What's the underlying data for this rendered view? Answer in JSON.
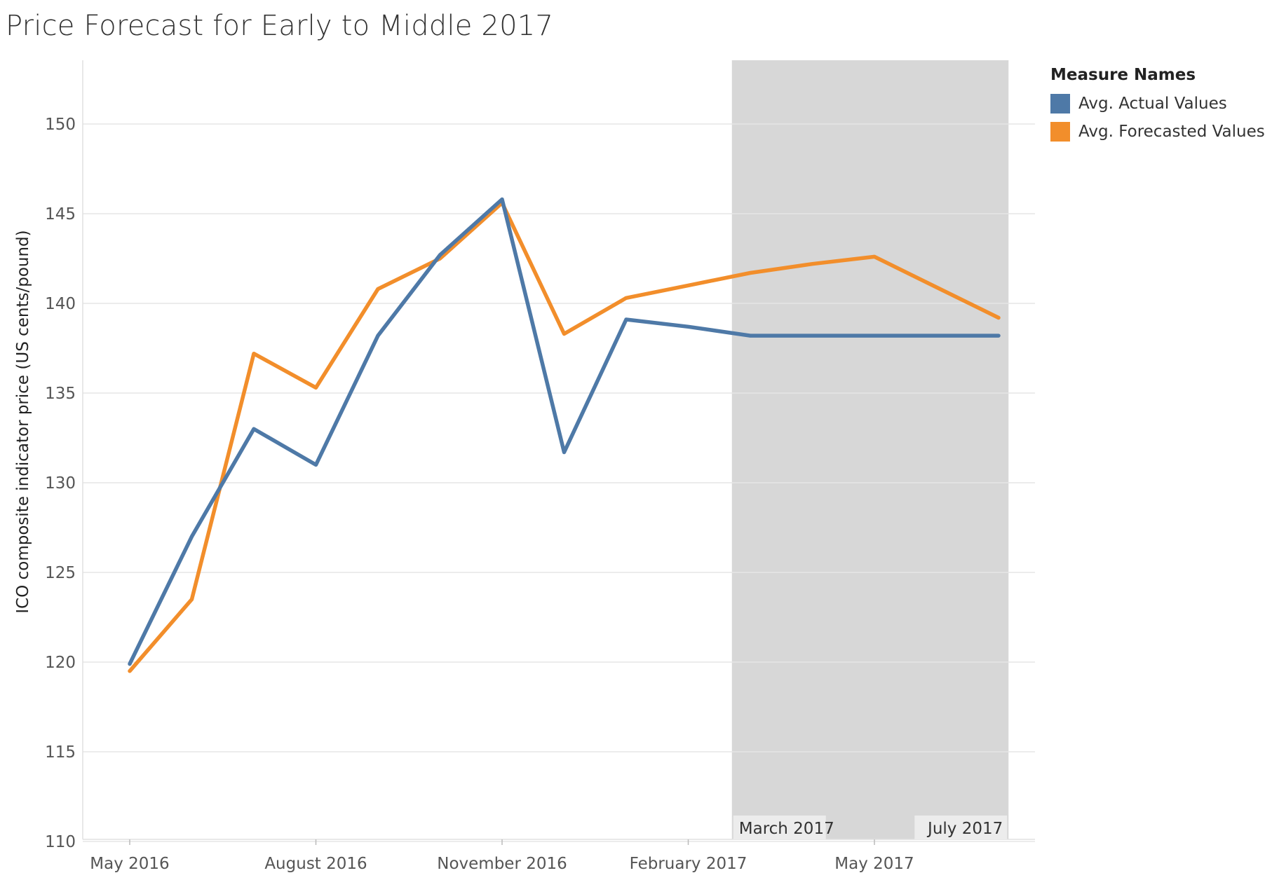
{
  "title": "Price Forecast for Early to Middle 2017",
  "legend": {
    "title": "Measure Names",
    "items": [
      {
        "label": "Avg. Actual Values",
        "color": "#4e79a7"
      },
      {
        "label": "Avg. Forecasted Values",
        "color": "#f28e2b"
      }
    ]
  },
  "chart_data": {
    "type": "line",
    "title": "Price Forecast for Early to Middle 2017",
    "xlabel": "",
    "ylabel": "ICO composite indicator price (US cents/pound)",
    "ylim": [
      109.5,
      153.5
    ],
    "yticks": [
      110,
      115,
      120,
      125,
      130,
      135,
      140,
      145,
      150
    ],
    "x": [
      "2016-05",
      "2016-06",
      "2016-07",
      "2016-08",
      "2016-09",
      "2016-10",
      "2016-11",
      "2016-12",
      "2017-01",
      "2017-02",
      "2017-03",
      "2017-04",
      "2017-05",
      "2017-06",
      "2017-07"
    ],
    "xticks": [
      {
        "x": "2016-05",
        "label": "May 2016"
      },
      {
        "x": "2016-08",
        "label": "August 2016"
      },
      {
        "x": "2016-11",
        "label": "November 2016"
      },
      {
        "x": "2017-02",
        "label": "February 2017"
      },
      {
        "x": "2017-05",
        "label": "May 2017"
      }
    ],
    "series": [
      {
        "name": "Avg. Actual Values",
        "color": "#4e79a7",
        "values": [
          119.9,
          127.0,
          133.0,
          131.0,
          138.2,
          142.7,
          145.8,
          131.7,
          139.1,
          138.7,
          138.2,
          138.2,
          138.2,
          138.2,
          138.2
        ]
      },
      {
        "name": "Avg. Forecasted Values",
        "color": "#f28e2b",
        "values": [
          119.5,
          123.5,
          137.2,
          135.3,
          140.8,
          142.5,
          145.6,
          138.3,
          140.3,
          141.0,
          141.7,
          142.2,
          142.6,
          140.9,
          139.2
        ]
      }
    ],
    "highlight_band": {
      "from": "2017-03",
      "to": "2017-07",
      "color": "#d7d7d7",
      "labels": [
        "March 2017",
        "July 2017"
      ]
    },
    "grid": true
  }
}
